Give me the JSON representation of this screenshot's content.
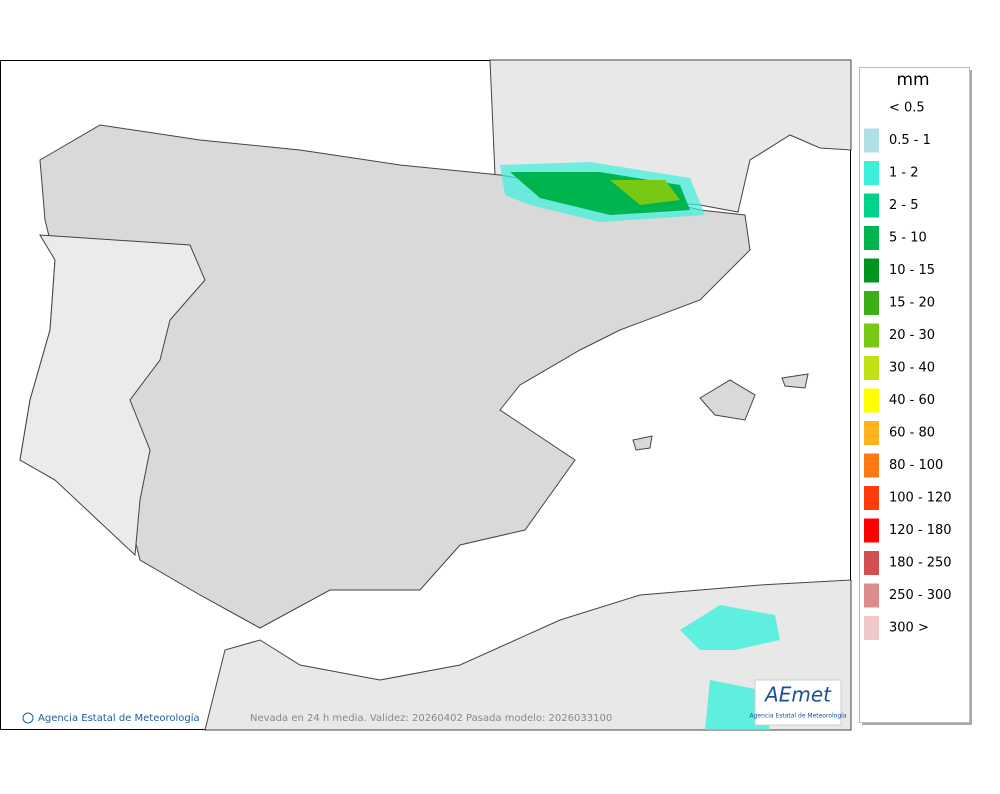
{
  "legend": {
    "title": "mm",
    "items": [
      {
        "label": "< 0.5",
        "color": "#ffffff"
      },
      {
        "label": "0.5 - 1",
        "color": "#b0dfe5"
      },
      {
        "label": "1 - 2",
        "color": "#3cf0dc"
      },
      {
        "label": "2 - 5",
        "color": "#00d28c"
      },
      {
        "label": "5 - 10",
        "color": "#00b450"
      },
      {
        "label": "10 - 15",
        "color": "#00961e"
      },
      {
        "label": "15 - 20",
        "color": "#3caf14"
      },
      {
        "label": "20 - 30",
        "color": "#78c814"
      },
      {
        "label": "30 - 40",
        "color": "#bee114"
      },
      {
        "label": "40 - 60",
        "color": "#ffff00"
      },
      {
        "label": "60 - 80",
        "color": "#ffb41e"
      },
      {
        "label": "80 - 100",
        "color": "#ff7814"
      },
      {
        "label": "100 - 120",
        "color": "#ff3c0a"
      },
      {
        "label": "120 - 180",
        "color": "#ff0000"
      },
      {
        "label": "180 - 250",
        "color": "#d25050"
      },
      {
        "label": "250 - 300",
        "color": "#dc8c8c"
      },
      {
        "label": "300 >",
        "color": "#f0c8c8"
      }
    ]
  },
  "footer": {
    "credit": "Agencia Estatal de Meteorología",
    "caption": "Nevada en 24 h media. Validez: 20260402 Pasada modelo: 2026033100"
  },
  "logo": {
    "name": "AEmet",
    "subtitle": "Agencia Estatal de Meteorología"
  }
}
